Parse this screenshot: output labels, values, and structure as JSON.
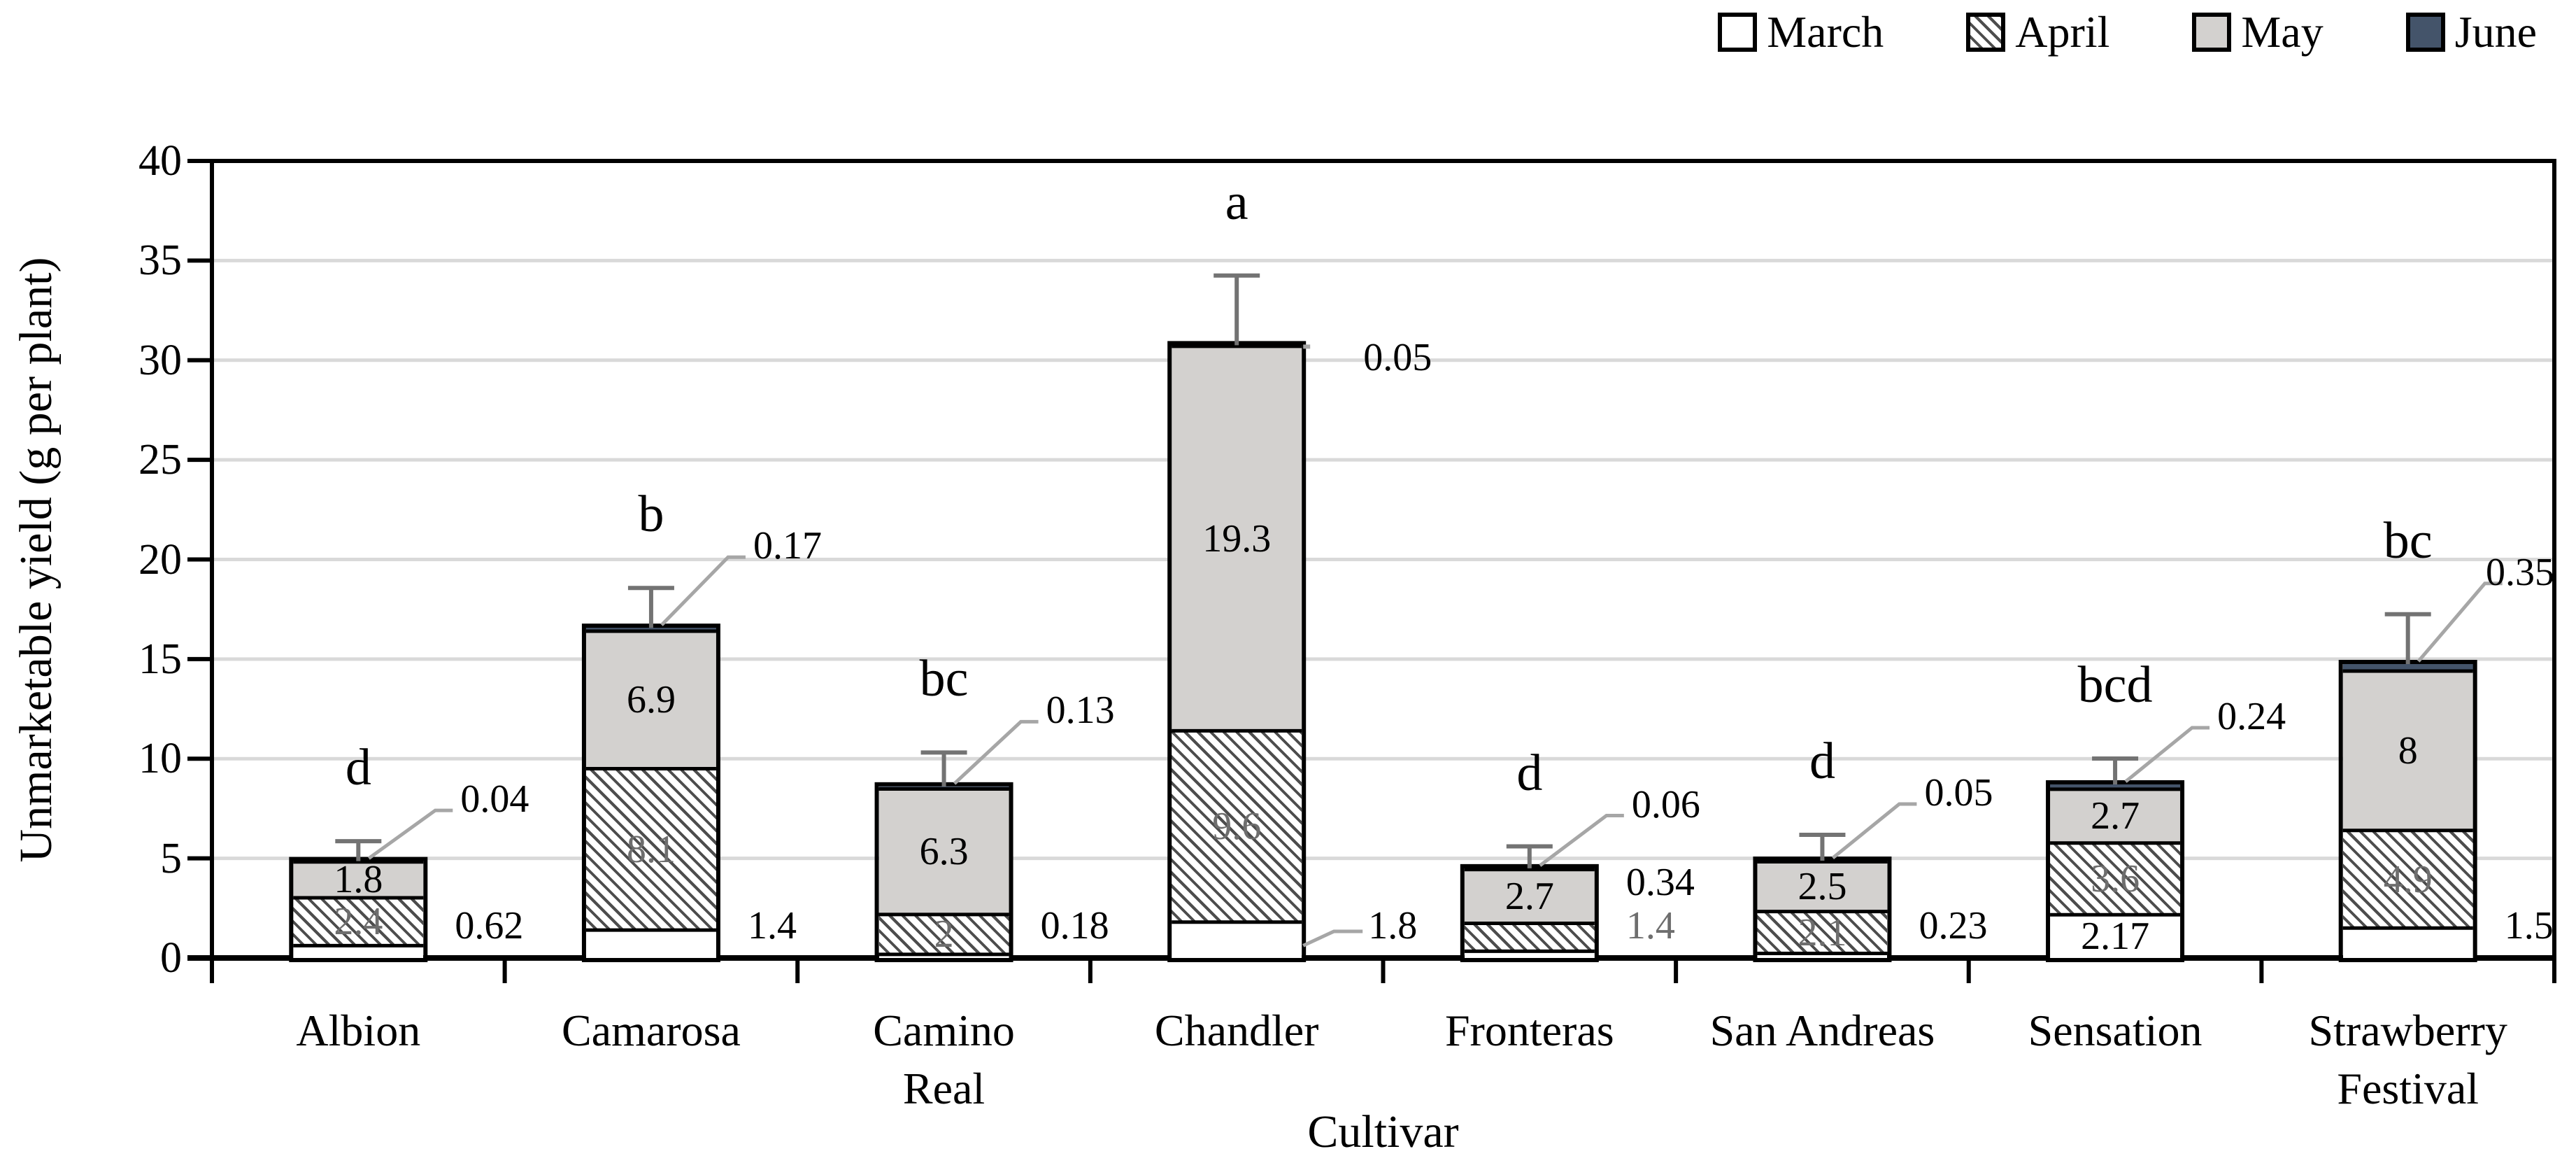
{
  "chart_data": {
    "type": "bar",
    "stacked": true,
    "title": "",
    "xlabel": "Cultivar",
    "ylabel": "Unmarketable yield (g per plant)",
    "ylim": [
      0,
      40
    ],
    "y_ticks": [
      0,
      5,
      10,
      15,
      20,
      25,
      30,
      35,
      40
    ],
    "grid": "horizontal",
    "legend_position": "top-right",
    "categories": [
      "Albion",
      "Camarosa",
      "Camino Real",
      "Chandler",
      "Fronteras",
      "San Andreas",
      "Sensation",
      "Strawberry Festival"
    ],
    "category_display": [
      "Albion",
      "Camarosa",
      "Camino\nReal",
      "Chandler",
      "Fronteras",
      "San Andreas",
      "Sensation",
      "Strawberry\nFestival"
    ],
    "series": [
      {
        "name": "March",
        "fill": "#ffffff",
        "pattern": "none",
        "label_color": "#000000",
        "values": [
          0.62,
          1.4,
          0.18,
          1.8,
          0.34,
          0.23,
          2.17,
          1.5
        ]
      },
      {
        "name": "April",
        "fill": "#ffffff",
        "pattern": "diagonal-hatch",
        "label_color": "#6e6e6e",
        "values": [
          2.4,
          8.1,
          2,
          9.6,
          1.4,
          2.1,
          3.6,
          4.9
        ]
      },
      {
        "name": "May",
        "fill": "#d3d1cf",
        "pattern": "none",
        "label_color": "#000000",
        "values": [
          1.8,
          6.9,
          6.3,
          19.3,
          2.7,
          2.5,
          2.7,
          8
        ]
      },
      {
        "name": "June",
        "fill": "#44546a",
        "pattern": "none",
        "label_color": "#000000",
        "values": [
          0.04,
          0.17,
          0.13,
          0.05,
          0.06,
          0.05,
          0.24,
          0.35
        ]
      }
    ],
    "significance_letters": [
      "d",
      "b",
      "bc",
      "a",
      "d",
      "d",
      "bcd",
      "bc"
    ],
    "error_bars_upper": [
      1.0,
      2.0,
      1.7,
      3.5,
      1.1,
      1.3,
      1.3,
      2.5
    ],
    "colors": {
      "bar_border": "#000000",
      "gridline": "#d9d9d9",
      "axis": "#000000",
      "error_bar": "#737373",
      "leader_line": "#a6a6a6",
      "june_fill": "#44546a",
      "may_fill": "#d3d1cf",
      "april_label": "#6e6e6e"
    }
  }
}
